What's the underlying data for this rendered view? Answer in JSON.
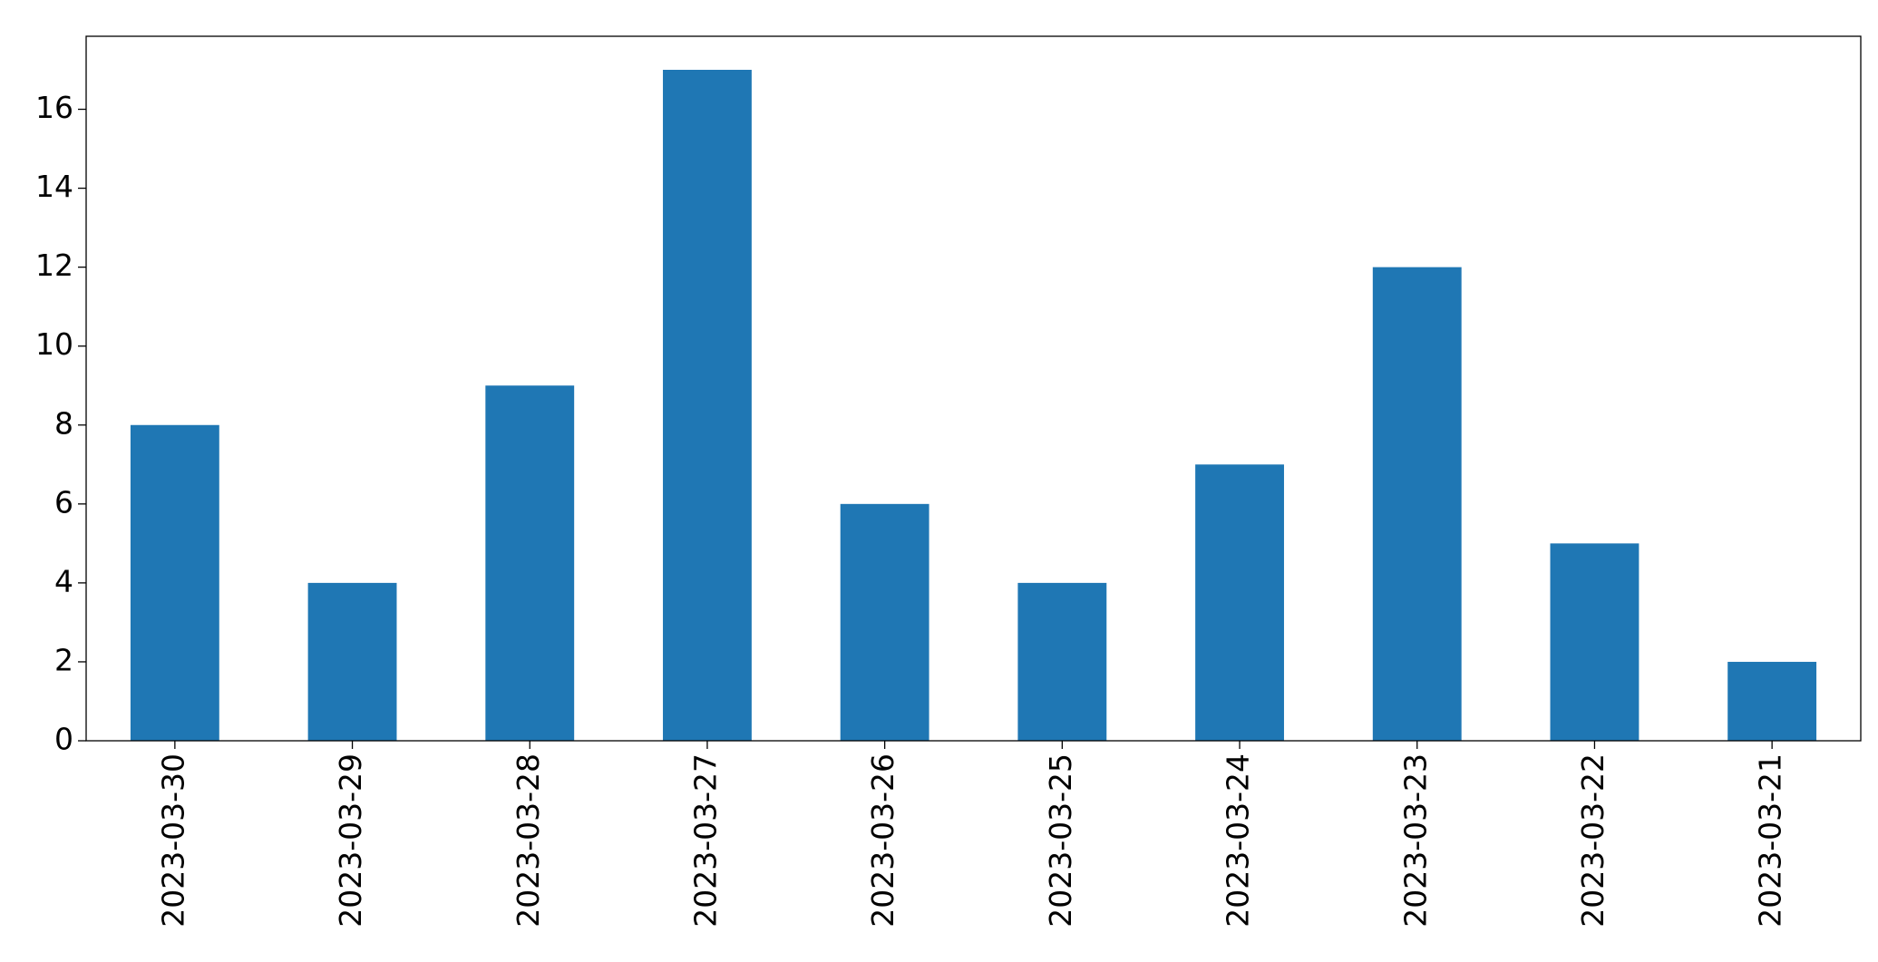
{
  "chart_data": {
    "type": "bar",
    "categories": [
      "2023-03-30",
      "2023-03-29",
      "2023-03-28",
      "2023-03-27",
      "2023-03-26",
      "2023-03-25",
      "2023-03-24",
      "2023-03-23",
      "2023-03-22",
      "2023-03-21"
    ],
    "values": [
      8,
      4,
      9,
      17,
      6,
      4,
      7,
      12,
      5,
      2
    ],
    "color": "#1f77b4",
    "ylim": [
      0,
      17.85
    ],
    "yticks": [
      0,
      2,
      4,
      6,
      8,
      10,
      12,
      14,
      16
    ],
    "grid": false
  }
}
